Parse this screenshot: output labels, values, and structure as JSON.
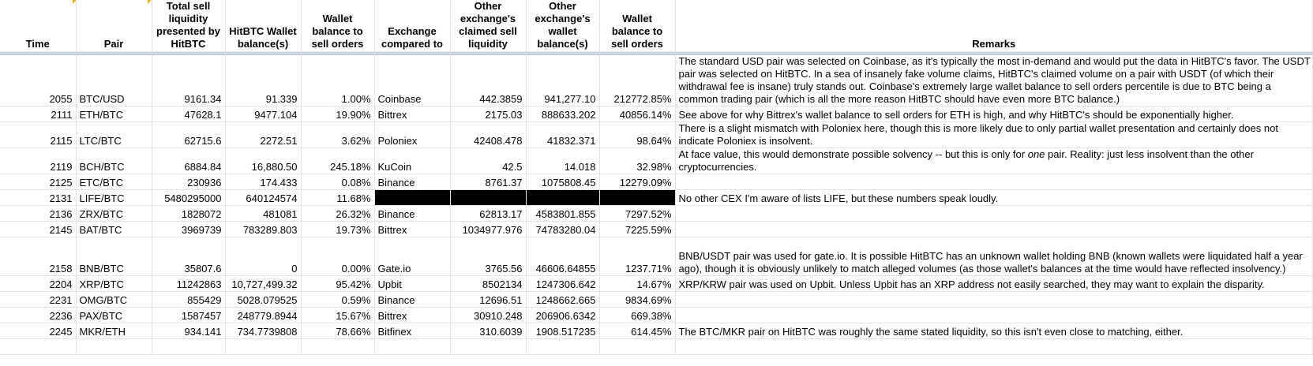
{
  "headers": {
    "time": "Time",
    "pair": "Pair",
    "total_sell": "Total sell liquidity presented by HitBTC",
    "hitbtc_wallet": "HitBTC Wallet balance(s)",
    "wallet_to_sell": "Wallet balance to sell orders",
    "exchange": "Exchange compared to",
    "other_liquidity": "Other exchange's claimed sell liquidity",
    "other_wallet": "Other exchange's wallet balance(s)",
    "other_wallet_to_sell": "Wallet balance to sell orders",
    "remarks": "Remarks"
  },
  "rows": [
    {
      "time": "2055",
      "pair": "BTC/USD",
      "total_sell": "9161.34",
      "hitbtc_wallet": "91.339",
      "ratio": "1.00%",
      "exchange": "Coinbase",
      "other_liquidity": "442.3859",
      "other_wallet": "941,277.10",
      "other_ratio": "212772.85%",
      "remark": "The standard USD pair was selected on Coinbase, as it's typically the most in-demand and would put the data in HitBTC's favor. The USDT pair was selected on HitBTC. In a sea of insanely fake volume claims, HitBTC's claimed volume on a pair with USDT (of which their withdrawal fee is insane) truly stands out. Coinbase's extremely large wallet balance to sell orders percentile is due to BTC being a common trading pair (which is all the more reason HitBTC should have even more BTC balance.)"
    },
    {
      "time": "2111",
      "pair": "ETH/BTC",
      "total_sell": "47628.1",
      "hitbtc_wallet": "9477.104",
      "ratio": "19.90%",
      "exchange": "Bittrex",
      "other_liquidity": "2175.03",
      "other_wallet": "888633.202",
      "other_ratio": "40856.14%",
      "remark": "See above for why Bittrex's wallet balance to sell orders for ETH is high, and why HitBTC's should be exponentially higher."
    },
    {
      "time": "2115",
      "pair": "LTC/BTC",
      "total_sell": "62715.6",
      "hitbtc_wallet": "2272.51",
      "ratio": "3.62%",
      "exchange": "Poloniex",
      "other_liquidity": "42408.478",
      "other_wallet": "41832.371",
      "other_ratio": "98.64%",
      "remark": "There is a slight mismatch with Poloniex here, though this is more likely due to only partial wallet presentation and certainly does not indicate Poloniex is insolvent."
    },
    {
      "time": "2119",
      "pair": "BCH/BTC",
      "total_sell": "6884.84",
      "hitbtc_wallet": "16,880.50",
      "ratio": "245.18%",
      "exchange": "KuCoin",
      "other_liquidity": "42.5",
      "other_wallet": "14.018",
      "other_ratio": "32.98%",
      "remark_pre": "At face value, this would demonstrate possible solvency -- but this is only for ",
      "remark_em": "one",
      "remark_post": " pair. Reality: just less insolvent than the other cryptocurrencies."
    },
    {
      "time": "2125",
      "pair": "ETC/BTC",
      "total_sell": "230936",
      "hitbtc_wallet": "174.433",
      "ratio": "0.08%",
      "exchange": "Binance",
      "other_liquidity": "8761.37",
      "other_wallet": "1075808.45",
      "other_ratio": "12279.09%",
      "remark": ""
    },
    {
      "time": "2131",
      "pair": "LIFE/BTC",
      "total_sell": "5480295000",
      "hitbtc_wallet": "640124574",
      "ratio": "11.68%",
      "remark": "No other CEX I'm aware of lists LIFE, but these numbers speak loudly."
    },
    {
      "time": "2136",
      "pair": "ZRX/BTC",
      "total_sell": "1828072",
      "hitbtc_wallet": "481081",
      "ratio": "26.32%",
      "exchange": "Binance",
      "other_liquidity": "62813.17",
      "other_wallet": "4583801.855",
      "other_ratio": "7297.52%",
      "remark": ""
    },
    {
      "time": "2145",
      "pair": "BAT/BTC",
      "total_sell": "3969739",
      "hitbtc_wallet": "783289.803",
      "ratio": "19.73%",
      "exchange": "Bittrex",
      "other_liquidity": "1034977.976",
      "other_wallet": "74783280.04",
      "other_ratio": "7225.59%",
      "remark": ""
    },
    {
      "time": "2158",
      "pair": "BNB/BTC",
      "total_sell": "35807.6",
      "hitbtc_wallet": "0",
      "ratio": "0.00%",
      "exchange": "Gate.io",
      "other_liquidity": "3765.56",
      "other_wallet": "46606.64855",
      "other_ratio": "1237.71%",
      "remark": "BNB/USDT pair was used for gate.io. It is possible HitBTC has an unknown wallet holding BNB (known wallets were liquidated half a year ago), though it is obviously unlikely to match alleged volumes (as those wallet's balances at the time would have reflected insolvency.)"
    },
    {
      "time": "2204",
      "pair": "XRP/BTC",
      "total_sell": "11242863",
      "hitbtc_wallet": "10,727,499.32",
      "ratio": "95.42%",
      "exchange": "Upbit",
      "other_liquidity": "8502134",
      "other_wallet": "1247306.642",
      "other_ratio": "14.67%",
      "remark": "XRP/KRW pair was used on Upbit. Unless Upbit has an XRP address not easily searched, they may want to explain the disparity."
    },
    {
      "time": "2231",
      "pair": "OMG/BTC",
      "total_sell": "855429",
      "hitbtc_wallet": "5028.079525",
      "ratio": "0.59%",
      "exchange": "Binance",
      "other_liquidity": "12696.51",
      "other_wallet": "1248662.665",
      "other_ratio": "9834.69%",
      "remark": ""
    },
    {
      "time": "2236",
      "pair": "PAX/BTC",
      "total_sell": "1587457",
      "hitbtc_wallet": "248779.8944",
      "ratio": "15.67%",
      "exchange": "Bittrex",
      "other_liquidity": "30910.248",
      "other_wallet": "206906.6342",
      "other_ratio": "669.38%",
      "remark": ""
    },
    {
      "time": "2245",
      "pair": "MKR/ETH",
      "total_sell": "934.141",
      "hitbtc_wallet": "734.7739808",
      "ratio": "78.66%",
      "exchange": "Bitfinex",
      "other_liquidity": "310.6039",
      "other_wallet": "1908.517235",
      "other_ratio": "614.45%",
      "remark": "The BTC/MKR pair on HitBTC was roughly the same stated liquidity, so this isn't even close to matching, either."
    }
  ]
}
